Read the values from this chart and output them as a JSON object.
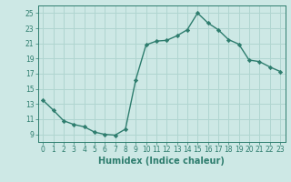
{
  "x": [
    0,
    1,
    2,
    3,
    4,
    5,
    6,
    7,
    8,
    9,
    10,
    11,
    12,
    13,
    14,
    15,
    16,
    17,
    18,
    19,
    20,
    21,
    22,
    23
  ],
  "y": [
    13.5,
    12.2,
    10.8,
    10.3,
    10.0,
    9.3,
    9.0,
    8.9,
    9.7,
    16.2,
    20.8,
    21.3,
    21.4,
    22.0,
    22.8,
    25.0,
    23.7,
    22.8,
    21.5,
    20.9,
    18.8,
    18.6,
    17.9,
    17.3
  ],
  "line_color": "#2e7d6e",
  "marker": "D",
  "marker_size": 2.2,
  "bg_color": "#cde8e5",
  "grid_color": "#b0d5d0",
  "xlabel": "Humidex (Indice chaleur)",
  "xlim": [
    -0.5,
    23.5
  ],
  "ylim": [
    8,
    26
  ],
  "yticks": [
    9,
    11,
    13,
    15,
    17,
    19,
    21,
    23,
    25
  ],
  "xticks": [
    0,
    1,
    2,
    3,
    4,
    5,
    6,
    7,
    8,
    9,
    10,
    11,
    12,
    13,
    14,
    15,
    16,
    17,
    18,
    19,
    20,
    21,
    22,
    23
  ],
  "line_width": 1.0,
  "xlabel_fontsize": 7.0,
  "tick_fontsize": 5.5,
  "tick_color": "#2e7d6e",
  "label_color": "#2e7d6e",
  "spine_color": "#2e7d6e"
}
